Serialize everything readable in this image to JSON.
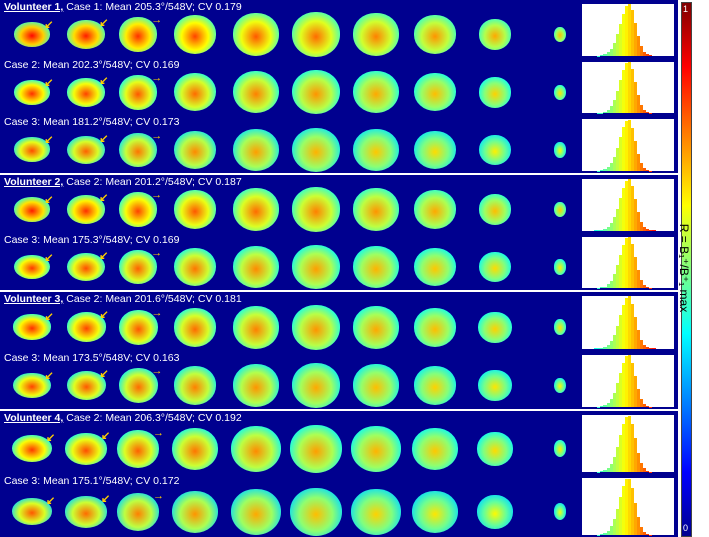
{
  "colorbar": {
    "top_label": "1",
    "bottom_label": "0",
    "axis_label": "R = B₁⁺/B⁺₁ max",
    "colormap": "jet"
  },
  "volunteers": [
    {
      "label": "Volunteer 1,",
      "cases": [
        {
          "caption": "Case 1: Mean 205.3°/548V; CV 0.179",
          "intensity": 0.62
        },
        {
          "caption": "Case 2: Mean 202.3°/548V; CV 0.169",
          "intensity": 0.58
        },
        {
          "caption": "Case 3: Mean 181.2°/548V; CV 0.173",
          "intensity": 0.55
        }
      ]
    },
    {
      "label": "Volunteer 2,",
      "cases": [
        {
          "caption": "Case 2: Mean 201.2°/548V; CV 0.187",
          "intensity": 0.6
        },
        {
          "caption": "Case 3: Mean 175.3°/548V; CV 0.169",
          "intensity": 0.57
        }
      ]
    },
    {
      "label": "Volunteer 3,",
      "cases": [
        {
          "caption": "Case 2: Mean 201.6°/548V; CV 0.181",
          "intensity": 0.58
        },
        {
          "caption": "Case 3: Mean 173.5°/548V; CV 0.163",
          "intensity": 0.56
        }
      ]
    },
    {
      "label": "Volunteer 4,",
      "cases": [
        {
          "caption": "Case 2: Mean 206.3°/548V; CV 0.192",
          "intensity": 0.57
        },
        {
          "caption": "Case 3: Mean 175.1°/548V; CV 0.172",
          "intensity": 0.54
        }
      ]
    }
  ]
}
